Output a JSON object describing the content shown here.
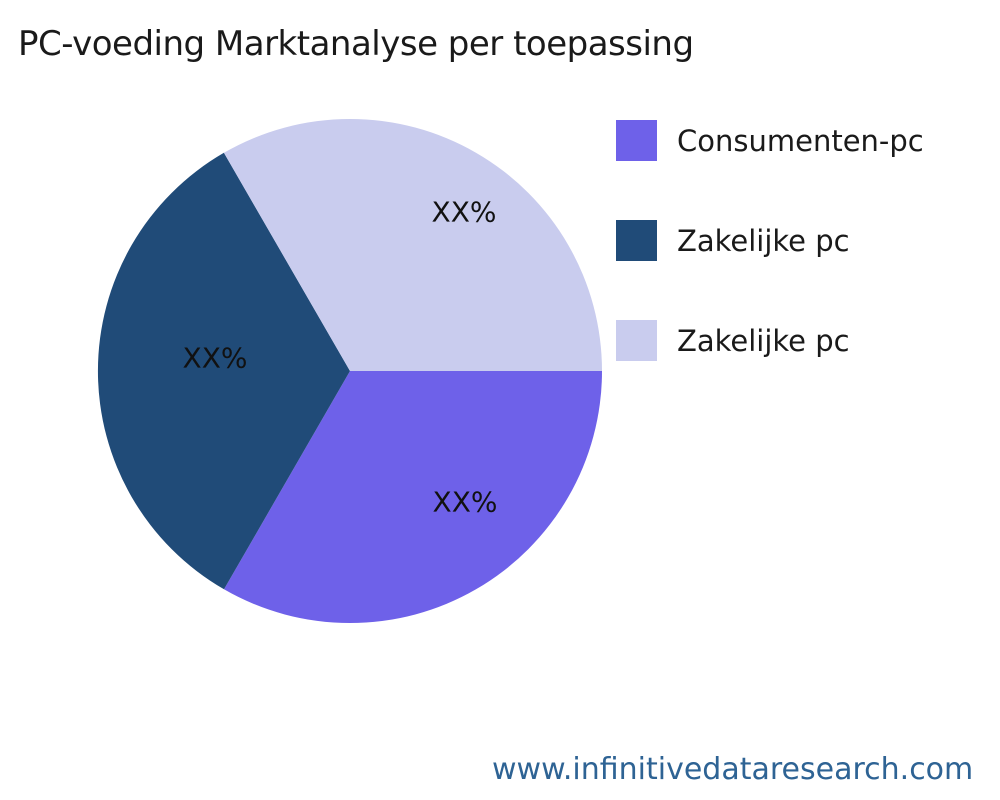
{
  "page": {
    "title": "PC-voeding Marktanalyse per toepassing"
  },
  "footer": {
    "url": "www.infinitivedataresearch.com",
    "link_color": "#2E6394"
  },
  "chart_data": {
    "type": "pie",
    "title": "PC-voeding Marktanalyse per toepassing",
    "slices": [
      {
        "label": "Consumenten-pc",
        "display_value": "XX%",
        "value_pct_est": 33.33,
        "color": "#6E61E9"
      },
      {
        "label": "Zakelijke pc",
        "display_value": "XX%",
        "value_pct_est": 33.33,
        "color": "#204B78"
      },
      {
        "label": "Zakelijke pc",
        "display_value": "XX%",
        "value_pct_est": 33.34,
        "color": "#C9CCEE"
      }
    ],
    "start_angle_deg": 0,
    "direction": "clockwise",
    "legend_position": "right",
    "labels_masked": "XX%"
  }
}
